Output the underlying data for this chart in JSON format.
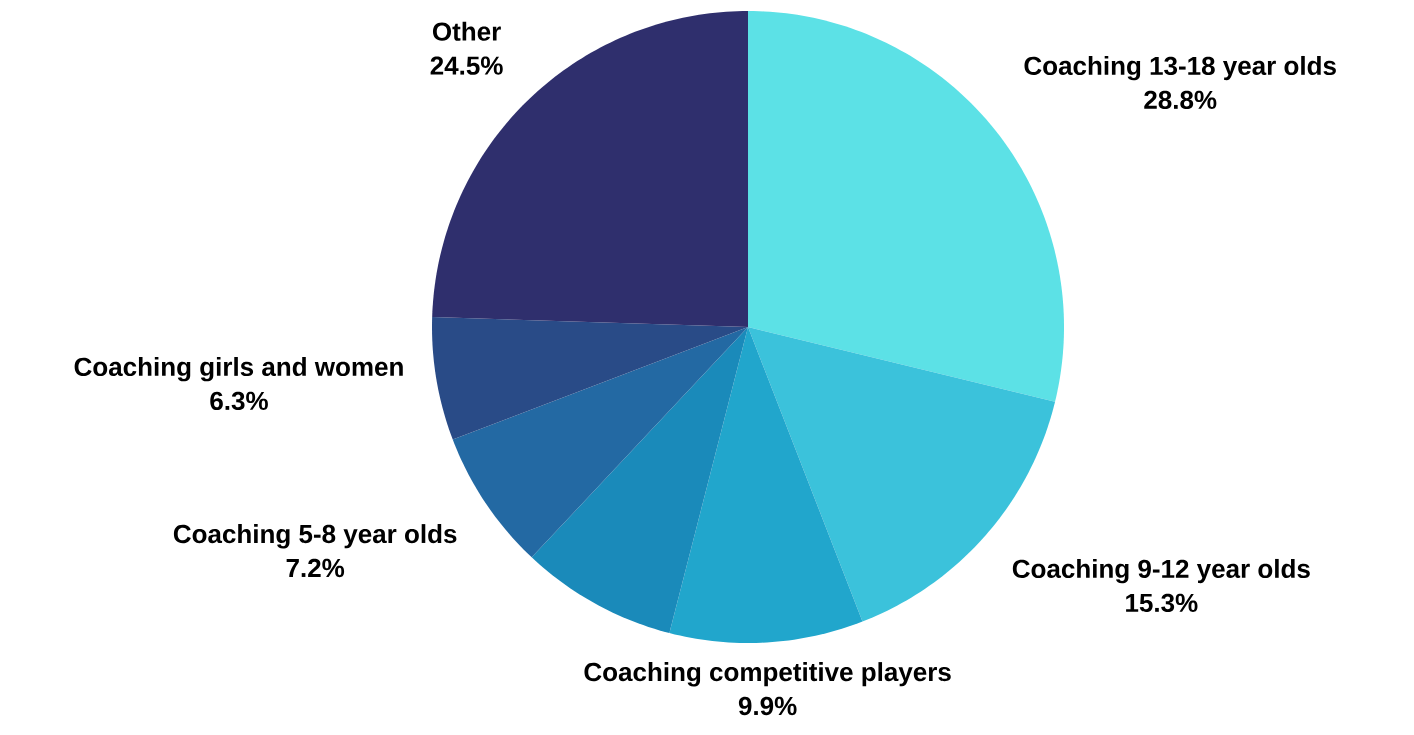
{
  "chart_data": {
    "type": "pie",
    "categories": [
      "Coaching 13-18 year olds",
      "Coaching 9-12 year olds",
      "Coaching competitive players",
      null,
      "Coaching 5-8 year olds",
      "Coaching girls and women",
      "Other"
    ],
    "values": [
      28.8,
      15.3,
      9.9,
      8.0,
      7.2,
      6.3,
      24.5
    ],
    "value_labels": [
      "28.8%",
      "15.3%",
      "9.9%",
      null,
      "7.2%",
      "6.3%",
      "24.5%"
    ],
    "colors": [
      "#5ce1e6",
      "#3bc2db",
      "#21a6cc",
      "#1a8aba",
      "#2369a3",
      "#294b87",
      "#2f2f6d"
    ]
  }
}
